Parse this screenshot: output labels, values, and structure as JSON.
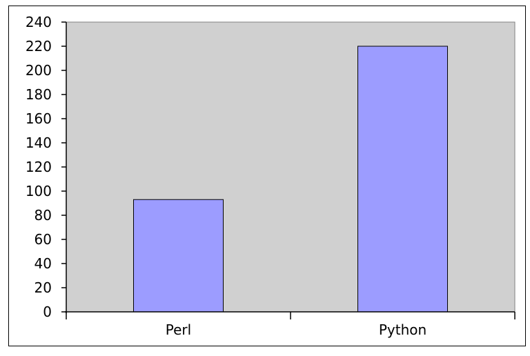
{
  "chart_data": {
    "type": "bar",
    "categories": [
      "Perl",
      "Python"
    ],
    "series": [
      {
        "values": [
          93,
          220
        ]
      }
    ],
    "title": "",
    "xlabel": "",
    "ylabel": "",
    "ylim": [
      0,
      240
    ],
    "yticks": [
      0,
      20,
      40,
      60,
      80,
      100,
      120,
      140,
      160,
      180,
      200,
      220,
      240
    ],
    "grid": false,
    "legend": "none"
  },
  "colors": {
    "plot_background": "#d0d0d0",
    "bar_fill": "#9c9cff",
    "bar_stroke": "#000000",
    "axis": "#000000"
  }
}
